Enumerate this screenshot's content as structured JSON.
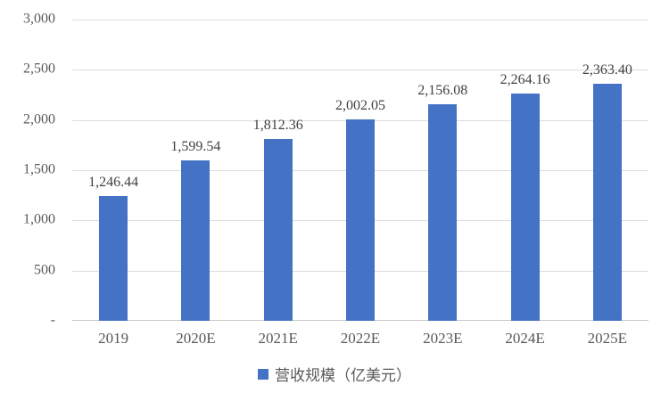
{
  "chart_data": {
    "type": "bar",
    "categories": [
      "2019",
      "2020E",
      "2021E",
      "2022E",
      "2023E",
      "2024E",
      "2025E"
    ],
    "values": [
      1246.44,
      1599.54,
      1812.36,
      2002.05,
      2156.08,
      2264.16,
      2363.4
    ],
    "value_labels": [
      "1,246.44",
      "1,599.54",
      "1,812.36",
      "2,002.05",
      "2,156.08",
      "2,264.16",
      "2,363.40"
    ],
    "legend": "营收规模（亿美元）",
    "legend_position": "bottom",
    "ylim": [
      0,
      3000
    ],
    "yticks": [
      0,
      500,
      1000,
      1500,
      2000,
      2500,
      3000
    ],
    "ytick_labels": [
      "-",
      "500",
      "1,000",
      "1,500",
      "2,000",
      "2,500",
      "3,000"
    ],
    "grid": true,
    "bar_color": "#4472C4",
    "gridline_color": "#DCDCDC",
    "axis_line_color": "#C9C7C7",
    "axis_label_color": "#595959",
    "data_label_color": "#404040"
  }
}
